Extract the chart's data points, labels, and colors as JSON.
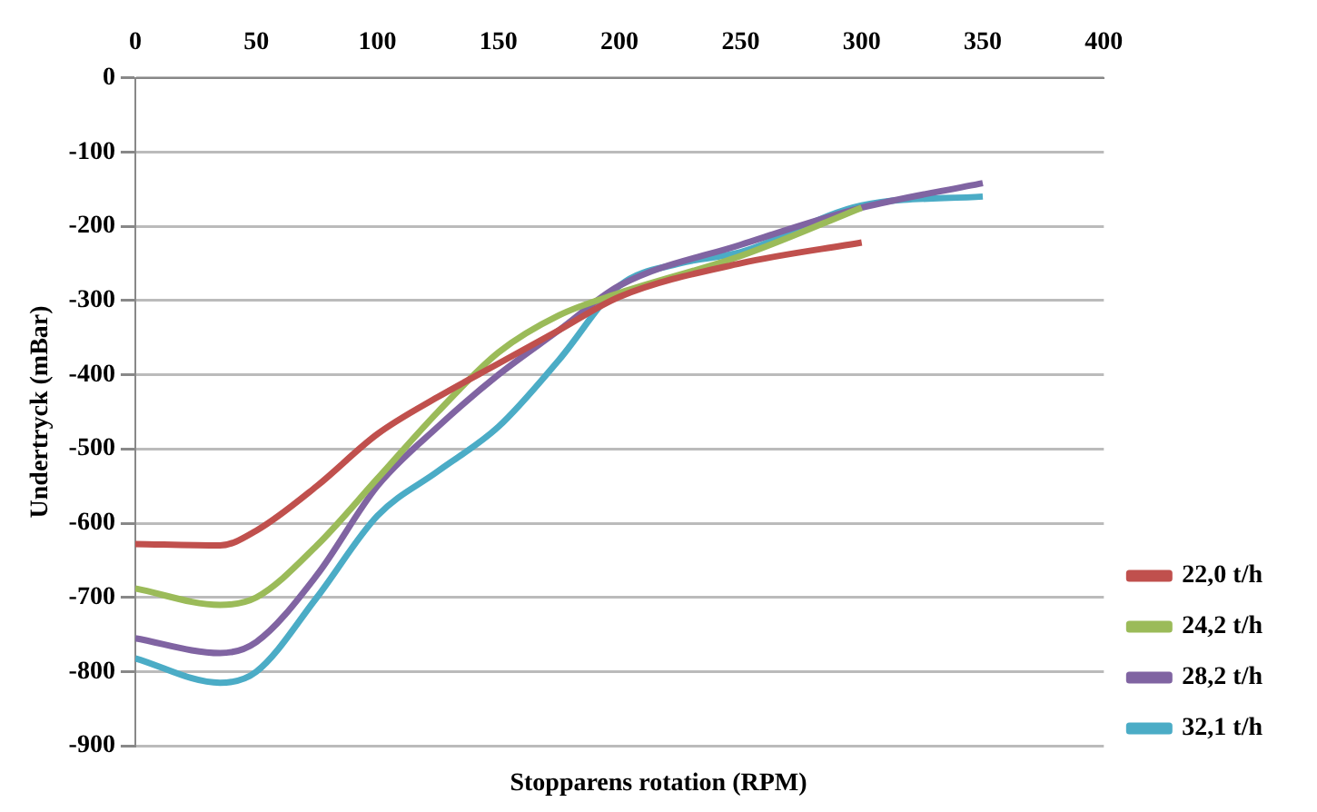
{
  "chart_data": {
    "type": "line",
    "xlabel": "Stopparens rotation (RPM)",
    "ylabel": "Undertryck (mBar)",
    "xlim": [
      0,
      400
    ],
    "xticks": [
      0,
      50,
      100,
      150,
      200,
      250,
      300,
      350,
      400
    ],
    "ylim": [
      -900,
      0
    ],
    "yticks": [
      -900,
      -800,
      -700,
      -600,
      -500,
      -400,
      -300,
      -200,
      -100,
      0
    ],
    "grid": "y",
    "legend": "bottom right",
    "marker": "none",
    "line_style": "solid",
    "series": [
      {
        "name": "22,0 t/h",
        "color": "#c0504d",
        "x": [
          0,
          35,
          50,
          75,
          100,
          125,
          150,
          175,
          200,
          250,
          300
        ],
        "values": [
          -628,
          -630,
          -610,
          -550,
          -480,
          -430,
          -385,
          -340,
          -295,
          -250,
          -222
        ]
      },
      {
        "name": "24,2 t/h",
        "color": "#9bbb59",
        "x": [
          0,
          35,
          50,
          75,
          100,
          125,
          150,
          175,
          200,
          250,
          300
        ],
        "values": [
          -688,
          -710,
          -700,
          -630,
          -540,
          -450,
          -370,
          -320,
          -290,
          -240,
          -175
        ]
      },
      {
        "name": "28,2 t/h",
        "color": "#8064a2",
        "x": [
          0,
          35,
          50,
          75,
          100,
          125,
          150,
          175,
          200,
          250,
          300,
          350
        ],
        "values": [
          -755,
          -775,
          -760,
          -670,
          -550,
          -470,
          -400,
          -340,
          -280,
          -225,
          -175,
          -142
        ]
      },
      {
        "name": "32,1 t/h",
        "color": "#4bacc6",
        "x": [
          0,
          35,
          50,
          75,
          100,
          125,
          150,
          175,
          200,
          225,
          250,
          300,
          350
        ],
        "values": [
          -782,
          -815,
          -800,
          -700,
          -590,
          -530,
          -470,
          -380,
          -280,
          -250,
          -235,
          -172,
          -160
        ]
      }
    ]
  }
}
